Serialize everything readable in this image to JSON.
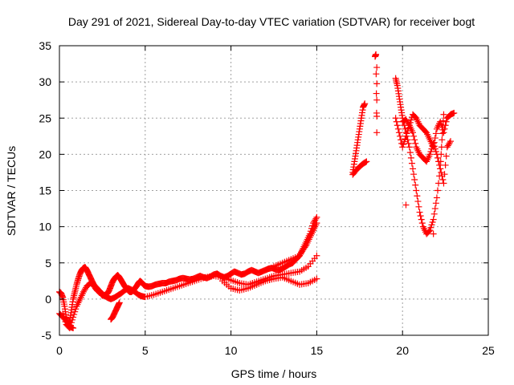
{
  "chart_data": {
    "type": "scatter",
    "title": "Day 291 of 2021, Sidereal Day-to-day VTEC variation (SDTVAR) for receiver bogt",
    "xlabel": "GPS time / hours",
    "ylabel": "SDTVAR / TECUs",
    "xlim": [
      0,
      25
    ],
    "ylim": [
      -5,
      35
    ],
    "xticks": [
      0,
      5,
      10,
      15,
      20,
      25
    ],
    "yticks": [
      -5,
      0,
      5,
      10,
      15,
      20,
      25,
      30,
      35
    ],
    "grid": true,
    "legend": "none",
    "marker": "plus",
    "color": "#ff0000",
    "series": [
      {
        "x": [
          0.0,
          0.1,
          0.2,
          0.3,
          0.4,
          0.5,
          0.6,
          0.7,
          0.8,
          0.9,
          1.0,
          1.1,
          1.2,
          1.3,
          1.4,
          1.5,
          1.6,
          1.7,
          1.8,
          1.9,
          2.0,
          2.1,
          2.2,
          2.3,
          2.4,
          2.5,
          2.6,
          2.7,
          2.8,
          2.9,
          3.0,
          3.1,
          3.2,
          3.3,
          3.4,
          3.5,
          3.6,
          3.7,
          3.8,
          3.9,
          4.0,
          4.1,
          4.2,
          4.3,
          4.4,
          4.5,
          4.6,
          4.7,
          4.8,
          4.9,
          5.0,
          5.2,
          5.4,
          5.6,
          5.8,
          6.0,
          6.2,
          6.4,
          6.6,
          6.8,
          7.0,
          7.2,
          7.4,
          7.6,
          7.8,
          8.0,
          8.2,
          8.4,
          8.6,
          8.8,
          9.0,
          9.2,
          9.4,
          9.6,
          9.8,
          10.0,
          10.2,
          10.4,
          10.6,
          10.8,
          11.0,
          11.2,
          11.4,
          11.6,
          11.8,
          12.0,
          12.2,
          12.4,
          12.6,
          12.8,
          13.0,
          13.2,
          13.4,
          13.6,
          13.8,
          14.0,
          14.2,
          14.4,
          14.6,
          14.8,
          15.0
        ],
        "y": [
          1.0,
          0.8,
          0.2,
          -1.0,
          -2.5,
          -3.5,
          -3.0,
          -1.5,
          0.0,
          1.0,
          2.0,
          2.8,
          3.5,
          4.0,
          4.3,
          4.4,
          4.0,
          3.5,
          3.0,
          2.5,
          2.0,
          1.5,
          1.2,
          1.0,
          0.8,
          0.5,
          0.5,
          0.6,
          0.8,
          1.2,
          1.8,
          2.4,
          2.8,
          3.1,
          3.3,
          3.0,
          2.6,
          2.2,
          1.8,
          1.5,
          1.2,
          1.0,
          1.0,
          1.2,
          1.5,
          1.8,
          2.2,
          2.5,
          2.3,
          2.0,
          1.8,
          1.7,
          1.8,
          2.0,
          2.1,
          2.2,
          2.2,
          2.4,
          2.5,
          2.6,
          2.8,
          2.9,
          2.8,
          2.7,
          2.8,
          3.0,
          3.2,
          3.0,
          2.9,
          3.1,
          3.4,
          3.5,
          3.2,
          3.0,
          3.2,
          3.5,
          3.8,
          3.6,
          3.4,
          3.5,
          3.8,
          4.0,
          3.8,
          3.6,
          3.8,
          4.0,
          4.2,
          4.3,
          4.1,
          4.0,
          4.2,
          4.5,
          4.8,
          5.0,
          5.5,
          6.0,
          6.8,
          7.5,
          8.5,
          9.5,
          10.5
        ]
      },
      {
        "x": [
          0.2,
          0.4,
          0.6,
          0.8,
          1.0,
          1.2,
          1.4,
          1.6,
          1.8,
          2.0,
          2.2,
          2.4,
          2.6,
          2.8,
          3.0,
          3.2,
          3.4,
          3.6,
          3.8,
          4.0,
          4.2,
          4.4,
          4.6,
          4.8,
          5.0,
          5.5,
          6.0,
          6.5,
          7.0,
          7.5,
          8.0,
          8.5,
          9.0,
          9.5,
          10.0,
          10.5,
          11.0,
          11.5,
          12.0,
          12.5,
          13.0,
          13.5,
          14.0,
          14.5,
          15.0
        ],
        "y": [
          -2.0,
          -3.5,
          -4.0,
          -2.5,
          -1.0,
          0.0,
          1.0,
          1.8,
          2.2,
          2.0,
          1.5,
          1.0,
          0.5,
          0.2,
          0.0,
          0.2,
          0.5,
          0.8,
          1.2,
          1.5,
          1.3,
          1.0,
          0.6,
          0.4,
          0.3,
          0.6,
          1.0,
          1.4,
          1.8,
          2.2,
          2.6,
          3.0,
          3.2,
          3.0,
          2.6,
          2.2,
          2.0,
          2.4,
          2.8,
          3.2,
          3.4,
          3.6,
          3.8,
          4.5,
          6.0
        ]
      },
      {
        "x": [
          0.0,
          0.2,
          0.4,
          0.6,
          0.8,
          3.0,
          3.1,
          3.2,
          3.3,
          3.4,
          3.5
        ],
        "y": [
          -2.0,
          -2.5,
          -3.0,
          -3.8,
          -4.0,
          -2.8,
          -2.5,
          -2.0,
          -1.5,
          -1.0,
          -0.5
        ]
      },
      {
        "x": [
          9.5,
          10.0,
          10.5,
          11.0,
          11.5,
          12.0,
          12.5,
          13.0,
          13.5,
          14.0,
          14.5,
          15.0
        ],
        "y": [
          2.5,
          1.5,
          1.2,
          1.5,
          2.0,
          2.5,
          2.8,
          3.0,
          2.5,
          2.0,
          2.2,
          2.8
        ]
      },
      {
        "x": [
          12.5,
          13.0,
          13.5,
          14.0,
          14.2,
          14.4,
          14.6,
          14.8,
          15.0
        ],
        "y": [
          4.5,
          5.0,
          5.5,
          6.0,
          7.0,
          8.0,
          9.0,
          10.5,
          11.3
        ]
      },
      {
        "x": [
          17.1,
          17.2,
          17.3,
          17.4,
          17.5,
          17.6,
          17.7,
          17.8
        ],
        "y": [
          17.5,
          19.0,
          20.5,
          22.0,
          23.5,
          25.0,
          26.5,
          27.0
        ]
      },
      {
        "x": [
          17.1,
          17.3,
          17.5,
          17.7,
          17.9
        ],
        "y": [
          17.2,
          17.8,
          18.3,
          18.7,
          19.0
        ]
      },
      {
        "x": [
          18.4,
          18.45,
          18.5,
          18.5
        ],
        "y": [
          33.5,
          33.8,
          23.0,
          32.0
        ]
      },
      {
        "x": [
          19.6,
          19.7,
          19.8,
          19.9,
          20.0,
          20.2,
          20.4,
          20.6,
          20.8,
          21.0,
          21.2,
          21.4,
          21.6,
          21.8,
          22.0,
          22.2,
          22.3,
          22.4
        ],
        "y": [
          30.5,
          29.5,
          28.0,
          26.5,
          25.0,
          23.0,
          21.0,
          18.0,
          15.0,
          12.0,
          10.0,
          9.0,
          9.5,
          11.0,
          14.0,
          18.0,
          22.0,
          25.5
        ]
      },
      {
        "x": [
          19.6,
          19.8,
          20.0,
          20.2,
          20.4,
          20.6,
          20.8,
          21.0,
          21.2,
          21.4,
          21.6,
          21.8,
          22.0,
          22.2,
          22.4,
          22.6,
          22.8,
          23.0
        ],
        "y": [
          25.0,
          23.0,
          21.0,
          22.5,
          24.0,
          25.5,
          25.0,
          24.0,
          23.5,
          23.0,
          22.0,
          21.0,
          23.5,
          24.5,
          23.0,
          25.0,
          25.5,
          25.7
        ]
      },
      {
        "x": [
          20.0,
          20.2,
          20.4,
          20.6,
          20.8,
          21.0,
          21.2,
          21.4,
          21.6,
          21.8,
          22.0,
          22.2,
          22.4,
          22.6,
          22.8
        ],
        "y": [
          24.5,
          24.8,
          24.0,
          23.0,
          21.0,
          20.0,
          19.5,
          19.0,
          20.0,
          21.5,
          20.0,
          18.0,
          16.0,
          21.0,
          21.8
        ]
      },
      {
        "x": [
          20.2,
          21.8
        ],
        "y": [
          13.0,
          9.0
        ]
      }
    ]
  }
}
